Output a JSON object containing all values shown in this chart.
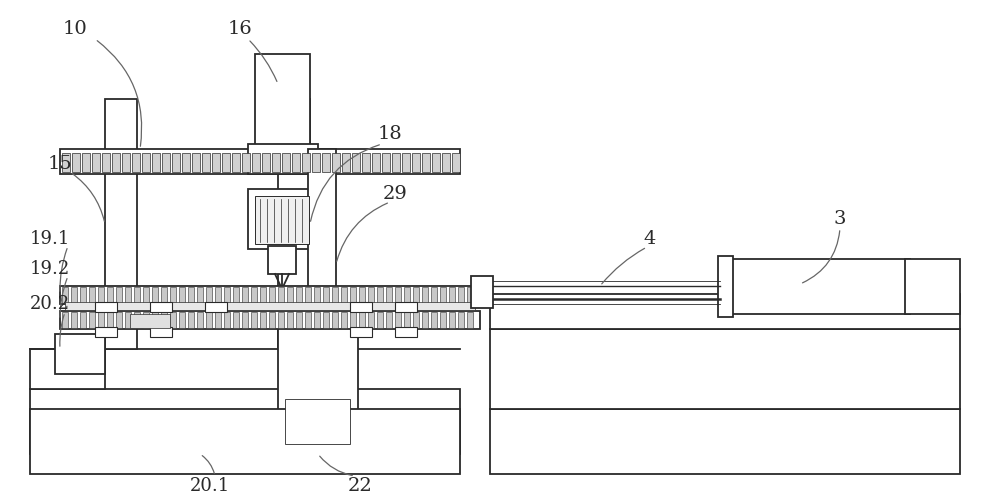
{
  "bg_color": "#ffffff",
  "lc": "#2a2a2a",
  "lc_light": "#999999",
  "lw_main": 1.3,
  "lw_thin": 0.7,
  "label_fs": 14
}
